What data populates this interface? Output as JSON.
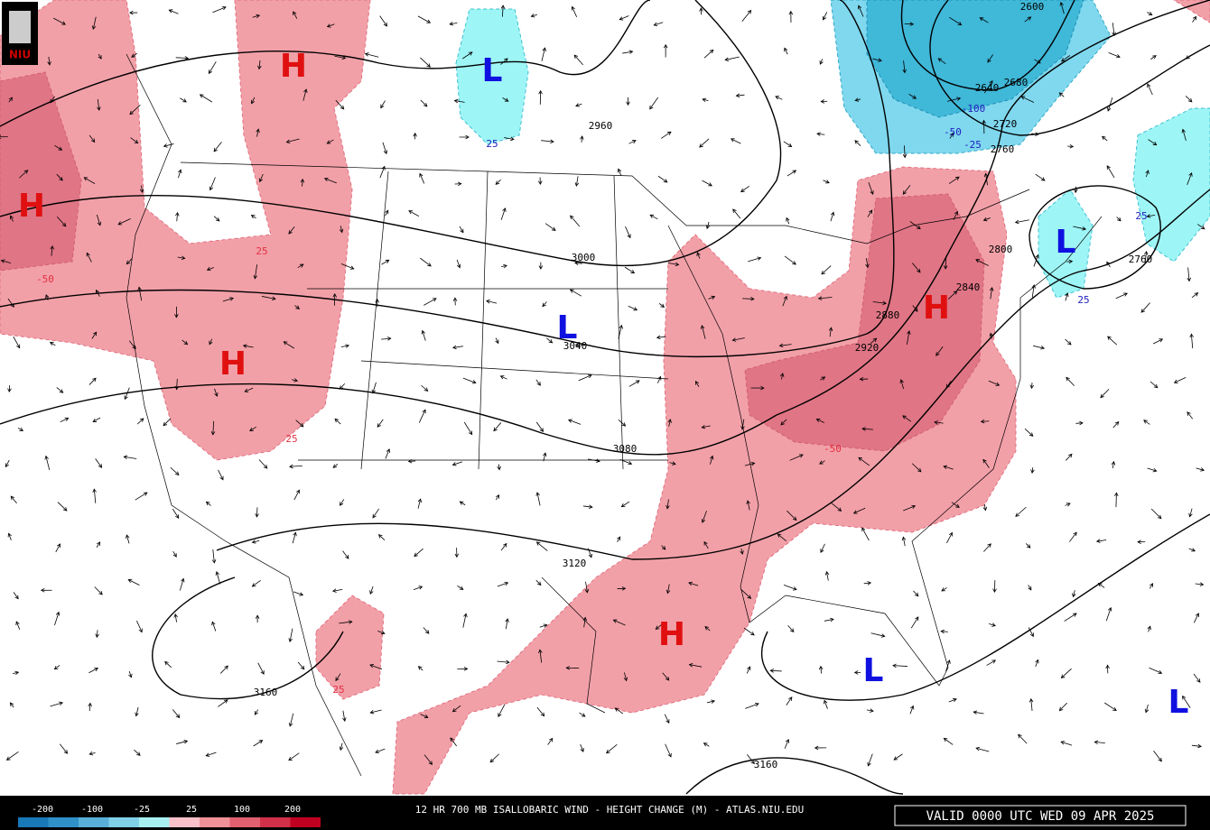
{
  "logo": "NIU",
  "centers": [
    "H",
    "H",
    "H",
    "H",
    "H",
    "L",
    "L",
    "L",
    "L",
    "L"
  ],
  "contour_labels": [
    "2960",
    "3000",
    "3040",
    "3080",
    "3120",
    "3160",
    "3160",
    "2920",
    "2880",
    "2840",
    "2800",
    "2760",
    "2720",
    "2680",
    "2640",
    "2600",
    "2760"
  ],
  "change_labels": [
    "25",
    "25",
    "-50",
    "25",
    "-50",
    "25",
    "-25",
    "-100",
    "-50",
    "25",
    "25"
  ],
  "legend": {
    "labels": [
      "-200",
      "-100",
      "-25",
      "25",
      "100",
      "200"
    ]
  },
  "footer": {
    "title": "12 HR 700 MB ISALLOBARIC WIND - HEIGHT CHANGE (M) - ATLAS.NIU.EDU",
    "valid": "VALID 0000 UTC WED 09 APR 2025"
  }
}
